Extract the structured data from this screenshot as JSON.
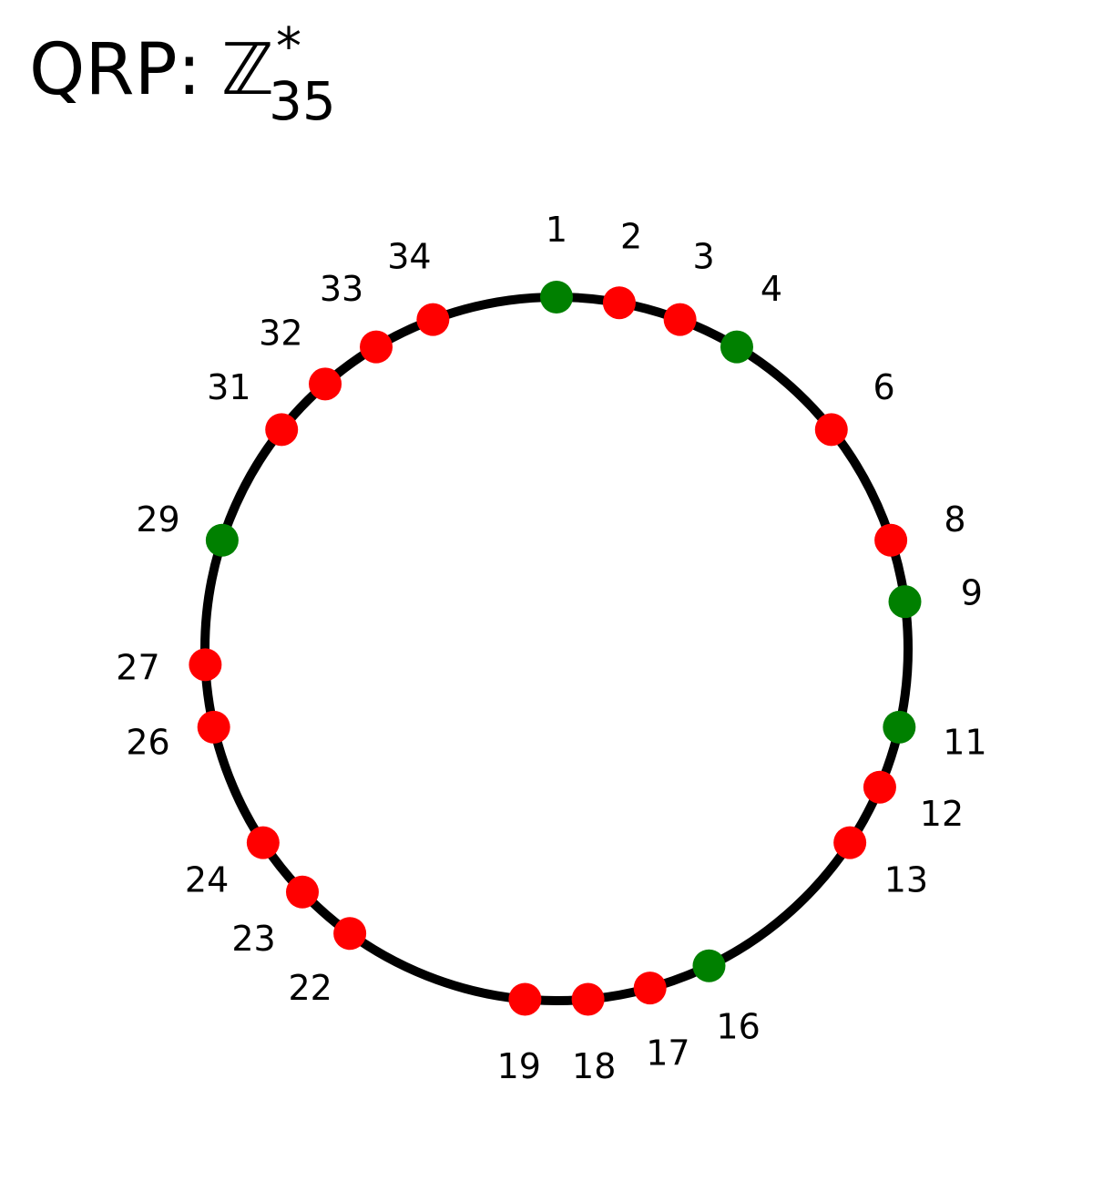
{
  "title": {
    "prefix": "QRP:",
    "set_symbol": "ℤ",
    "superscript": "*",
    "subscript": "35"
  },
  "modulus": 35,
  "colors": {
    "residue": "#008000",
    "non_residue": "#ff0000",
    "circle": "#000000"
  },
  "elements": [
    {
      "value": 1,
      "label": "1",
      "residue": true
    },
    {
      "value": 2,
      "label": "2",
      "residue": false
    },
    {
      "value": 3,
      "label": "3",
      "residue": false
    },
    {
      "value": 4,
      "label": "4",
      "residue": true
    },
    {
      "value": 6,
      "label": "6",
      "residue": false
    },
    {
      "value": 8,
      "label": "8",
      "residue": false
    },
    {
      "value": 9,
      "label": "9",
      "residue": true
    },
    {
      "value": 11,
      "label": "11",
      "residue": true
    },
    {
      "value": 12,
      "label": "12",
      "residue": false
    },
    {
      "value": 13,
      "label": "13",
      "residue": false
    },
    {
      "value": 16,
      "label": "16",
      "residue": true
    },
    {
      "value": 17,
      "label": "17",
      "residue": false
    },
    {
      "value": 18,
      "label": "18",
      "residue": false
    },
    {
      "value": 19,
      "label": "19",
      "residue": false
    },
    {
      "value": 22,
      "label": "22",
      "residue": false
    },
    {
      "value": 23,
      "label": "23",
      "residue": false
    },
    {
      "value": 24,
      "label": "24",
      "residue": false
    },
    {
      "value": 26,
      "label": "26",
      "residue": false
    },
    {
      "value": 27,
      "label": "27",
      "residue": false
    },
    {
      "value": 29,
      "label": "29",
      "residue": true
    },
    {
      "value": 31,
      "label": "31",
      "residue": false
    },
    {
      "value": 32,
      "label": "32",
      "residue": false
    },
    {
      "value": 33,
      "label": "33",
      "residue": false
    },
    {
      "value": 34,
      "label": "34",
      "residue": false
    }
  ]
}
